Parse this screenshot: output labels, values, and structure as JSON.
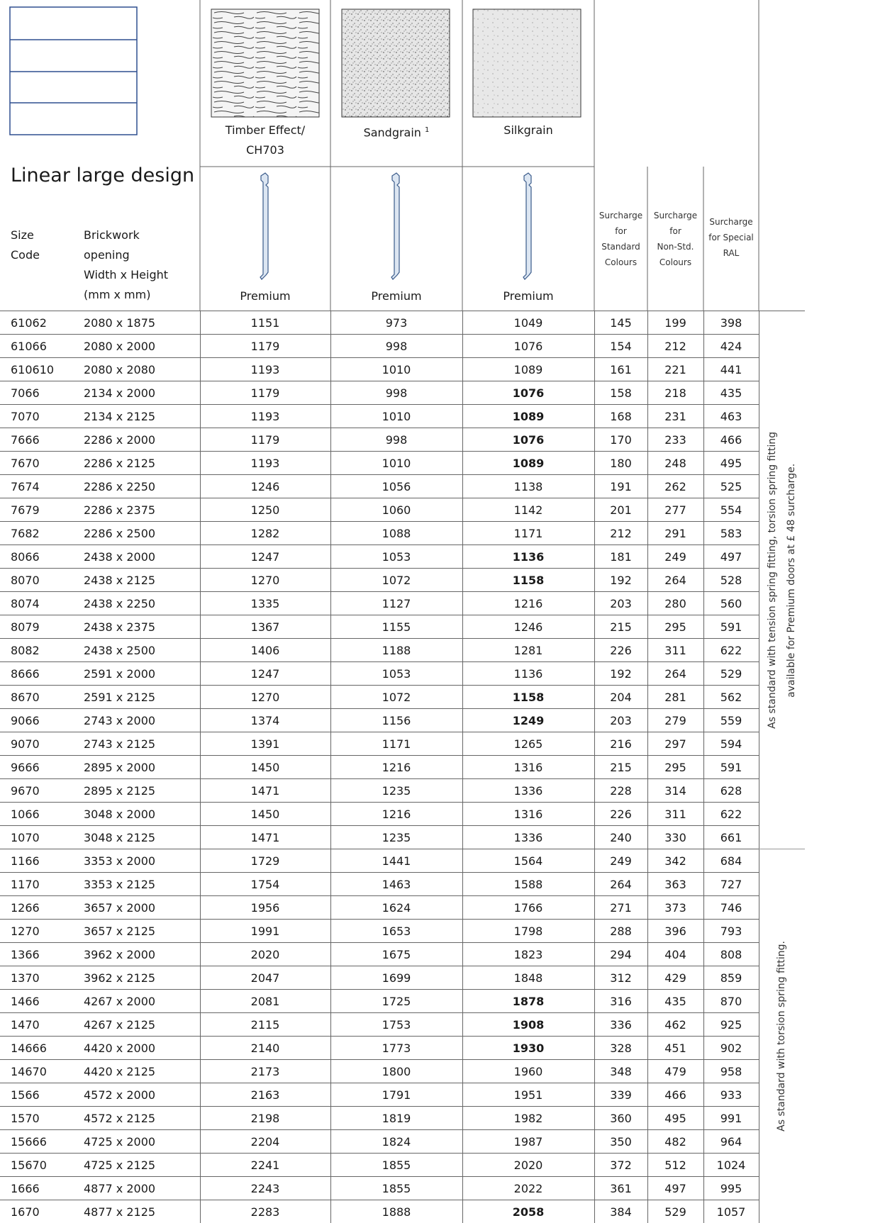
{
  "swatches": [
    {
      "lines": [
        "Timber Effect/",
        "CH703"
      ]
    },
    {
      "lines": [
        "Sandgrain"
      ],
      "footnote": "1"
    },
    {
      "lines": [
        "Silkgrain"
      ]
    }
  ],
  "title": "Linear large design",
  "column_headers": {
    "size_code": [
      "Size",
      "Code"
    ],
    "brickwork": [
      "Brickwork",
      "opening",
      "Width x Height",
      "(mm x mm)"
    ],
    "finishes": [
      "Premium",
      "Premium",
      "Premium"
    ],
    "surcharges": [
      [
        "Surcharge",
        "for",
        "Standard",
        "Colours"
      ],
      [
        "Surcharge",
        "for",
        "Non-Std.",
        "Colours"
      ],
      [
        "Surcharge",
        "for Special",
        "RAL"
      ]
    ]
  },
  "groups": [
    {
      "note_lines": [
        "As standard with tension spring fitting, torsion spring fitting",
        "available for Premium doors at £ 48 surcharge."
      ],
      "rows": [
        {
          "code": "61062",
          "opening": "2080 x 1875",
          "timber": 1151,
          "sandgrain": 973,
          "silkgrain": 1049,
          "std": 145,
          "non_std": 199,
          "special": 398
        },
        {
          "code": "61066",
          "opening": "2080 x 2000",
          "timber": 1179,
          "sandgrain": 998,
          "silkgrain": 1076,
          "std": 154,
          "non_std": 212,
          "special": 424
        },
        {
          "code": "610610",
          "opening": "2080 x 2080",
          "timber": 1193,
          "sandgrain": 1010,
          "silkgrain": 1089,
          "std": 161,
          "non_std": 221,
          "special": 441
        },
        {
          "code": "7066",
          "opening": "2134 x 2000",
          "timber": 1179,
          "sandgrain": 998,
          "silkgrain": 1076,
          "silkgrain_bold": true,
          "std": 158,
          "non_std": 218,
          "special": 435
        },
        {
          "code": "7070",
          "opening": "2134 x 2125",
          "timber": 1193,
          "sandgrain": 1010,
          "silkgrain": 1089,
          "silkgrain_bold": true,
          "std": 168,
          "non_std": 231,
          "special": 463
        },
        {
          "code": "7666",
          "opening": "2286 x 2000",
          "timber": 1179,
          "sandgrain": 998,
          "silkgrain": 1076,
          "silkgrain_bold": true,
          "std": 170,
          "non_std": 233,
          "special": 466
        },
        {
          "code": "7670",
          "opening": "2286 x 2125",
          "timber": 1193,
          "sandgrain": 1010,
          "silkgrain": 1089,
          "silkgrain_bold": true,
          "std": 180,
          "non_std": 248,
          "special": 495
        },
        {
          "code": "7674",
          "opening": "2286 x 2250",
          "timber": 1246,
          "sandgrain": 1056,
          "silkgrain": 1138,
          "std": 191,
          "non_std": 262,
          "special": 525
        },
        {
          "code": "7679",
          "opening": "2286 x 2375",
          "timber": 1250,
          "sandgrain": 1060,
          "silkgrain": 1142,
          "std": 201,
          "non_std": 277,
          "special": 554
        },
        {
          "code": "7682",
          "opening": "2286 x 2500",
          "timber": 1282,
          "sandgrain": 1088,
          "silkgrain": 1171,
          "std": 212,
          "non_std": 291,
          "special": 583
        },
        {
          "code": "8066",
          "opening": "2438 x 2000",
          "timber": 1247,
          "sandgrain": 1053,
          "silkgrain": 1136,
          "silkgrain_bold": true,
          "std": 181,
          "non_std": 249,
          "special": 497
        },
        {
          "code": "8070",
          "opening": "2438 x 2125",
          "timber": 1270,
          "sandgrain": 1072,
          "silkgrain": 1158,
          "silkgrain_bold": true,
          "std": 192,
          "non_std": 264,
          "special": 528
        },
        {
          "code": "8074",
          "opening": "2438 x 2250",
          "timber": 1335,
          "sandgrain": 1127,
          "silkgrain": 1216,
          "std": 203,
          "non_std": 280,
          "special": 560
        },
        {
          "code": "8079",
          "opening": "2438 x 2375",
          "timber": 1367,
          "sandgrain": 1155,
          "silkgrain": 1246,
          "std": 215,
          "non_std": 295,
          "special": 591
        },
        {
          "code": "8082",
          "opening": "2438 x 2500",
          "timber": 1406,
          "sandgrain": 1188,
          "silkgrain": 1281,
          "std": 226,
          "non_std": 311,
          "special": 622
        },
        {
          "code": "8666",
          "opening": "2591 x 2000",
          "timber": 1247,
          "sandgrain": 1053,
          "silkgrain": 1136,
          "std": 192,
          "non_std": 264,
          "special": 529
        },
        {
          "code": "8670",
          "opening": "2591 x 2125",
          "timber": 1270,
          "sandgrain": 1072,
          "silkgrain": 1158,
          "silkgrain_bold": true,
          "std": 204,
          "non_std": 281,
          "special": 562
        },
        {
          "code": "9066",
          "opening": "2743 x 2000",
          "timber": 1374,
          "sandgrain": 1156,
          "silkgrain": 1249,
          "silkgrain_bold": true,
          "std": 203,
          "non_std": 279,
          "special": 559
        },
        {
          "code": "9070",
          "opening": "2743 x 2125",
          "timber": 1391,
          "sandgrain": 1171,
          "silkgrain": 1265,
          "std": 216,
          "non_std": 297,
          "special": 594
        },
        {
          "code": "9666",
          "opening": "2895 x 2000",
          "timber": 1450,
          "sandgrain": 1216,
          "silkgrain": 1316,
          "std": 215,
          "non_std": 295,
          "special": 591
        },
        {
          "code": "9670",
          "opening": "2895 x 2125",
          "timber": 1471,
          "sandgrain": 1235,
          "silkgrain": 1336,
          "std": 228,
          "non_std": 314,
          "special": 628
        },
        {
          "code": "1066",
          "opening": "3048 x 2000",
          "timber": 1450,
          "sandgrain": 1216,
          "silkgrain": 1316,
          "std": 226,
          "non_std": 311,
          "special": 622
        },
        {
          "code": "1070",
          "opening": "3048 x 2125",
          "timber": 1471,
          "sandgrain": 1235,
          "silkgrain": 1336,
          "std": 240,
          "non_std": 330,
          "special": 661
        }
      ]
    },
    {
      "note_lines": [
        "As standard with torsion spring fitting."
      ],
      "rows": [
        {
          "code": "1166",
          "opening": "3353 x 2000",
          "timber": 1729,
          "sandgrain": 1441,
          "silkgrain": 1564,
          "std": 249,
          "non_std": 342,
          "special": 684
        },
        {
          "code": "1170",
          "opening": "3353 x 2125",
          "timber": 1754,
          "sandgrain": 1463,
          "silkgrain": 1588,
          "std": 264,
          "non_std": 363,
          "special": 727
        },
        {
          "code": "1266",
          "opening": "3657 x 2000",
          "timber": 1956,
          "sandgrain": 1624,
          "silkgrain": 1766,
          "std": 271,
          "non_std": 373,
          "special": 746
        },
        {
          "code": "1270",
          "opening": "3657 x 2125",
          "timber": 1991,
          "sandgrain": 1653,
          "silkgrain": 1798,
          "std": 288,
          "non_std": 396,
          "special": 793
        },
        {
          "code": "1366",
          "opening": "3962 x 2000",
          "timber": 2020,
          "sandgrain": 1675,
          "silkgrain": 1823,
          "std": 294,
          "non_std": 404,
          "special": 808
        },
        {
          "code": "1370",
          "opening": "3962 x 2125",
          "timber": 2047,
          "sandgrain": 1699,
          "silkgrain": 1848,
          "std": 312,
          "non_std": 429,
          "special": 859
        },
        {
          "code": "1466",
          "opening": "4267 x 2000",
          "timber": 2081,
          "sandgrain": 1725,
          "silkgrain": 1878,
          "silkgrain_bold": true,
          "std": 316,
          "non_std": 435,
          "special": 870
        },
        {
          "code": "1470",
          "opening": "4267 x 2125",
          "timber": 2115,
          "sandgrain": 1753,
          "silkgrain": 1908,
          "silkgrain_bold": true,
          "std": 336,
          "non_std": 462,
          "special": 925
        },
        {
          "code": "14666",
          "opening": "4420 x 2000",
          "timber": 2140,
          "sandgrain": 1773,
          "silkgrain": 1930,
          "silkgrain_bold": true,
          "std": 328,
          "non_std": 451,
          "special": 902
        },
        {
          "code": "14670",
          "opening": "4420 x 2125",
          "timber": 2173,
          "sandgrain": 1800,
          "silkgrain": 1960,
          "std": 348,
          "non_std": 479,
          "special": 958
        },
        {
          "code": "1566",
          "opening": "4572 x 2000",
          "timber": 2163,
          "sandgrain": 1791,
          "silkgrain": 1951,
          "std": 339,
          "non_std": 466,
          "special": 933
        },
        {
          "code": "1570",
          "opening": "4572 x 2125",
          "timber": 2198,
          "sandgrain": 1819,
          "silkgrain": 1982,
          "std": 360,
          "non_std": 495,
          "special": 991
        },
        {
          "code": "15666",
          "opening": "4725 x 2000",
          "timber": 2204,
          "sandgrain": 1824,
          "silkgrain": 1987,
          "std": 350,
          "non_std": 482,
          "special": 964
        },
        {
          "code": "15670",
          "opening": "4725 x 2125",
          "timber": 2241,
          "sandgrain": 1855,
          "silkgrain": 2020,
          "std": 372,
          "non_std": 512,
          "special": 1024
        },
        {
          "code": "1666",
          "opening": "4877 x 2000",
          "timber": 2243,
          "sandgrain": 1855,
          "silkgrain": 2022,
          "std": 361,
          "non_std": 497,
          "special": 995
        },
        {
          "code": "1670",
          "opening": "4877 x 2125",
          "timber": 2283,
          "sandgrain": 1888,
          "silkgrain": 2058,
          "silkgrain_bold": true,
          "std": 384,
          "non_std": 529,
          "special": 1057
        }
      ]
    }
  ]
}
